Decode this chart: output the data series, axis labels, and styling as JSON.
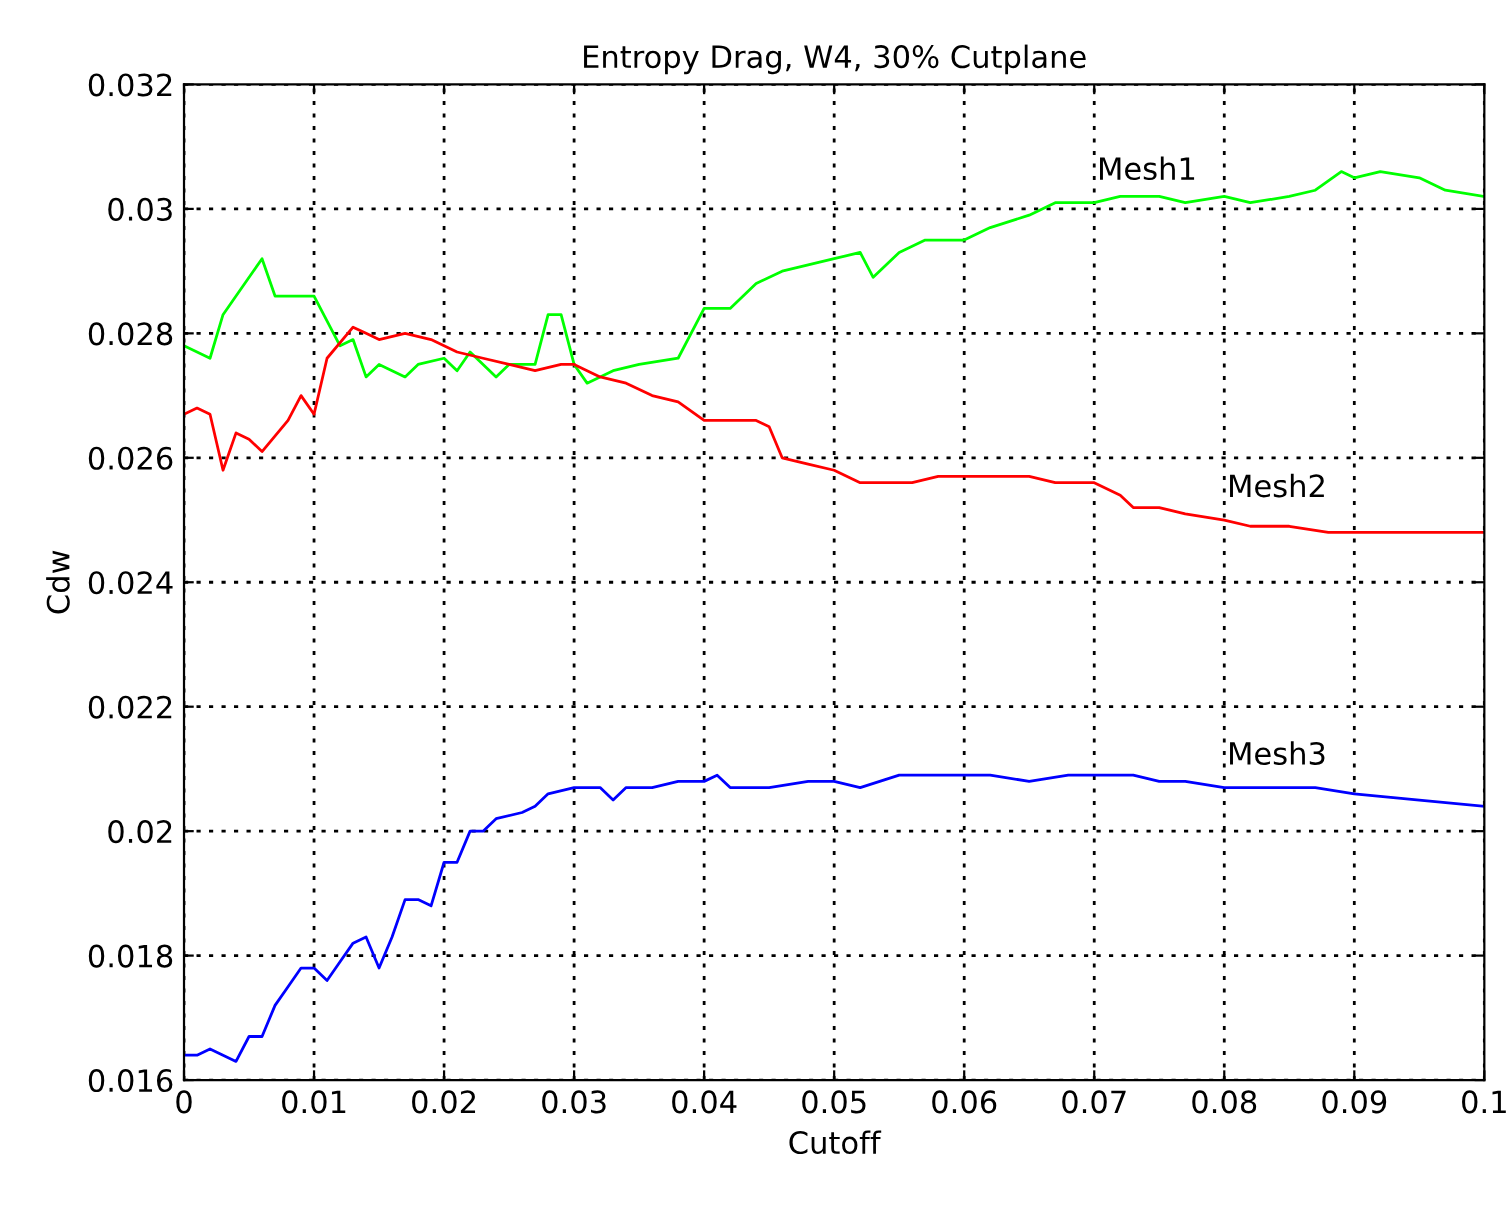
{
  "chart_data": {
    "type": "line",
    "title": "Entropy Drag, W4, 30% Cutplane",
    "xlabel": "Cutoff",
    "ylabel": "Cdw",
    "xlim": [
      0,
      0.1
    ],
    "ylim": [
      0.016,
      0.032
    ],
    "xticks": [
      0,
      0.01,
      0.02,
      0.03,
      0.04,
      0.05,
      0.06,
      0.07,
      0.08,
      0.09,
      0.1
    ],
    "yticks": [
      0.016,
      0.018,
      0.02,
      0.022,
      0.024,
      0.026,
      0.028,
      0.03,
      0.032
    ],
    "grid": true,
    "legend": false,
    "marker": "none",
    "line_style": "solid",
    "series": [
      {
        "name": "Mesh1",
        "color": "#00ff00",
        "x": [
          0,
          0.002,
          0.003,
          0.004,
          0.006,
          0.007,
          0.01,
          0.012,
          0.013,
          0.014,
          0.015,
          0.017,
          0.018,
          0.02,
          0.021,
          0.022,
          0.024,
          0.025,
          0.027,
          0.028,
          0.029,
          0.03,
          0.031,
          0.033,
          0.035,
          0.038,
          0.04,
          0.042,
          0.044,
          0.046,
          0.048,
          0.05,
          0.052,
          0.053,
          0.055,
          0.057,
          0.06,
          0.062,
          0.065,
          0.067,
          0.07,
          0.072,
          0.075,
          0.077,
          0.08,
          0.082,
          0.085,
          0.087,
          0.089,
          0.09,
          0.092,
          0.095,
          0.097,
          0.1
        ],
        "values": [
          0.0278,
          0.0276,
          0.0283,
          0.0286,
          0.0292,
          0.0286,
          0.0286,
          0.0278,
          0.0279,
          0.0273,
          0.0275,
          0.0273,
          0.0275,
          0.0276,
          0.0274,
          0.0277,
          0.0273,
          0.0275,
          0.0275,
          0.0283,
          0.0283,
          0.0275,
          0.0272,
          0.0274,
          0.0275,
          0.0276,
          0.0284,
          0.0284,
          0.0288,
          0.029,
          0.0291,
          0.0292,
          0.0293,
          0.0289,
          0.0293,
          0.0295,
          0.0295,
          0.0297,
          0.0299,
          0.0301,
          0.0301,
          0.0302,
          0.0302,
          0.0301,
          0.0302,
          0.0301,
          0.0302,
          0.0303,
          0.0306,
          0.0305,
          0.0306,
          0.0305,
          0.0303,
          0.0302
        ]
      },
      {
        "name": "Mesh2",
        "color": "#ff0000",
        "x": [
          0,
          0.001,
          0.002,
          0.003,
          0.004,
          0.005,
          0.006,
          0.008,
          0.009,
          0.01,
          0.011,
          0.013,
          0.014,
          0.015,
          0.017,
          0.019,
          0.021,
          0.023,
          0.025,
          0.027,
          0.029,
          0.03,
          0.032,
          0.034,
          0.036,
          0.038,
          0.04,
          0.042,
          0.044,
          0.045,
          0.046,
          0.048,
          0.05,
          0.052,
          0.054,
          0.056,
          0.058,
          0.06,
          0.062,
          0.065,
          0.067,
          0.07,
          0.072,
          0.073,
          0.075,
          0.077,
          0.08,
          0.082,
          0.085,
          0.088,
          0.09,
          0.1
        ],
        "values": [
          0.0267,
          0.0268,
          0.0267,
          0.0258,
          0.0264,
          0.0263,
          0.0261,
          0.0266,
          0.027,
          0.0267,
          0.0276,
          0.0281,
          0.028,
          0.0279,
          0.028,
          0.0279,
          0.0277,
          0.0276,
          0.0275,
          0.0274,
          0.0275,
          0.0275,
          0.0273,
          0.0272,
          0.027,
          0.0269,
          0.0266,
          0.0266,
          0.0266,
          0.0265,
          0.026,
          0.0259,
          0.0258,
          0.0256,
          0.0256,
          0.0256,
          0.0257,
          0.0257,
          0.0257,
          0.0257,
          0.0256,
          0.0256,
          0.0254,
          0.0252,
          0.0252,
          0.0251,
          0.025,
          0.0249,
          0.0249,
          0.0248,
          0.0248,
          0.0248
        ]
      },
      {
        "name": "Mesh3",
        "color": "#0000ff",
        "x": [
          0,
          0.001,
          0.002,
          0.003,
          0.004,
          0.005,
          0.006,
          0.007,
          0.008,
          0.009,
          0.01,
          0.011,
          0.012,
          0.013,
          0.014,
          0.015,
          0.016,
          0.017,
          0.018,
          0.019,
          0.02,
          0.021,
          0.022,
          0.023,
          0.024,
          0.026,
          0.027,
          0.028,
          0.03,
          0.032,
          0.033,
          0.034,
          0.036,
          0.038,
          0.04,
          0.041,
          0.042,
          0.045,
          0.048,
          0.05,
          0.052,
          0.055,
          0.058,
          0.06,
          0.062,
          0.065,
          0.068,
          0.07,
          0.073,
          0.075,
          0.077,
          0.08,
          0.083,
          0.085,
          0.087,
          0.09,
          0.095,
          0.1
        ],
        "values": [
          0.0164,
          0.0164,
          0.0165,
          0.0164,
          0.0163,
          0.0167,
          0.0167,
          0.0172,
          0.0175,
          0.0178,
          0.0178,
          0.0176,
          0.0179,
          0.0182,
          0.0183,
          0.0178,
          0.0183,
          0.0189,
          0.0189,
          0.0188,
          0.0195,
          0.0195,
          0.02,
          0.02,
          0.0202,
          0.0203,
          0.0204,
          0.0206,
          0.0207,
          0.0207,
          0.0205,
          0.0207,
          0.0207,
          0.0208,
          0.0208,
          0.0209,
          0.0207,
          0.0207,
          0.0208,
          0.0208,
          0.0207,
          0.0209,
          0.0209,
          0.0209,
          0.0209,
          0.0208,
          0.0209,
          0.0209,
          0.0209,
          0.0208,
          0.0208,
          0.0207,
          0.0207,
          0.0207,
          0.0207,
          0.0206,
          0.0205,
          0.0204
        ]
      }
    ]
  }
}
